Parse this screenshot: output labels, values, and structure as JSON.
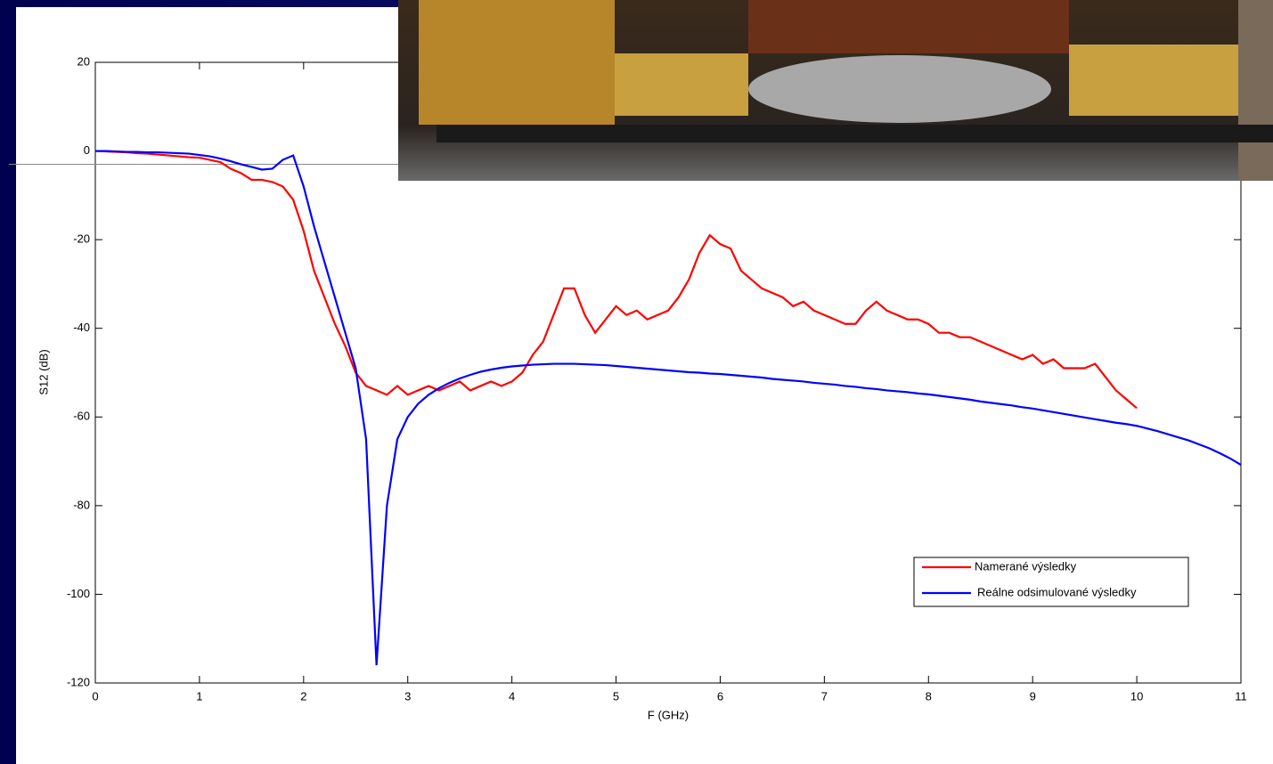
{
  "chart_data": {
    "type": "line",
    "xlabel": "F (GHz)",
    "ylabel": "S12 (dB)",
    "x": [
      0,
      0.1,
      0.2,
      0.3,
      0.4,
      0.5,
      0.6,
      0.7,
      0.8,
      0.9,
      1,
      1.1,
      1.2,
      1.3,
      1.4,
      1.5,
      1.6,
      1.7,
      1.8,
      1.9,
      2,
      2.1,
      2.2,
      2.3,
      2.4,
      2.5,
      2.6,
      2.7,
      2.8,
      2.9,
      3,
      3.1,
      3.2,
      3.3,
      3.4,
      3.5,
      3.6,
      3.7,
      3.8,
      3.9,
      4,
      4.1,
      4.2,
      4.3,
      4.4,
      4.5,
      4.6,
      4.7,
      4.8,
      4.9,
      5,
      5.1,
      5.2,
      5.3,
      5.4,
      5.5,
      5.6,
      5.7,
      5.8,
      5.9,
      6,
      6.1,
      6.2,
      6.3,
      6.4,
      6.5,
      6.6,
      6.7,
      6.8,
      6.9,
      7,
      7.1,
      7.2,
      7.3,
      7.4,
      7.5,
      7.6,
      7.7,
      7.8,
      7.9,
      8,
      8.1,
      8.2,
      8.3,
      8.4,
      8.5,
      8.6,
      8.7,
      8.8,
      8.9,
      9,
      9.1,
      9.2,
      9.3,
      9.4,
      9.5,
      9.6,
      9.7,
      9.8,
      9.9,
      10,
      10.1,
      10.2,
      10.3,
      10.4,
      10.5,
      10.6,
      10.7,
      10.8,
      10.9,
      11
    ],
    "series": [
      {
        "name": "Namerané výsledky",
        "color": "#ff0000",
        "values": [
          0,
          -0.1,
          -0.2,
          -0.3,
          -0.5,
          -0.6,
          -0.8,
          -1,
          -1.2,
          -1.4,
          -1.5,
          -2,
          -2.5,
          -4,
          -5,
          -6.5,
          -6.5,
          -7,
          -8,
          -11,
          -18,
          -27,
          -33,
          -39,
          -44,
          -50,
          -53,
          -54,
          -55,
          -53,
          -55,
          -54,
          -53,
          -54,
          -53,
          -52,
          -54,
          -53,
          -52,
          -53,
          -52,
          -50,
          -46,
          -43,
          -37,
          -31,
          -31,
          -37,
          -41,
          -38,
          -35,
          -37,
          -36,
          -38,
          -37,
          -36,
          -33,
          -29,
          -23,
          -19,
          -21,
          -22,
          -27,
          -29,
          -31,
          -32,
          -33,
          -35,
          -34,
          -36,
          -37,
          -38,
          -39,
          -39,
          -36,
          -34,
          -36,
          -37,
          -38,
          -38,
          -39,
          -41,
          -41,
          -42,
          -42,
          -43,
          -44,
          -45,
          -46,
          -47,
          -46,
          -48,
          -47,
          -49,
          -49,
          -49,
          -48,
          -51,
          -54,
          -56,
          -58,
          null,
          null,
          null,
          null,
          null,
          null,
          null,
          null,
          null,
          null
        ]
      },
      {
        "name": "Reálne odsimulované výsledky",
        "color": "#0000ff",
        "values": [
          0,
          0,
          -0.1,
          -0.2,
          -0.2,
          -0.3,
          -0.3,
          -0.4,
          -0.5,
          -0.6,
          -0.9,
          -1.2,
          -1.7,
          -2.3,
          -3,
          -3.6,
          -4.2,
          -4,
          -2,
          -1,
          -8,
          -17,
          -25,
          -33,
          -41,
          -49,
          -65,
          -116,
          -80,
          -65,
          -60,
          -57,
          -55,
          -53.5,
          -52.3,
          -51.3,
          -50.5,
          -49.8,
          -49.3,
          -48.9,
          -48.6,
          -48.4,
          -48.2,
          -48.1,
          -48,
          -48,
          -48,
          -48.1,
          -48.2,
          -48.3,
          -48.5,
          -48.7,
          -48.9,
          -49.1,
          -49.3,
          -49.5,
          -49.7,
          -49.9,
          -50,
          -50.2,
          -50.3,
          -50.5,
          -50.7,
          -50.9,
          -51.1,
          -51.4,
          -51.6,
          -51.8,
          -52,
          -52.3,
          -52.5,
          -52.7,
          -53,
          -53.2,
          -53.5,
          -53.7,
          -54,
          -54.2,
          -54.4,
          -54.7,
          -54.9,
          -55.2,
          -55.5,
          -55.8,
          -56.1,
          -56.5,
          -56.8,
          -57.1,
          -57.4,
          -57.8,
          -58.1,
          -58.5,
          -58.9,
          -59.3,
          -59.7,
          -60.1,
          -60.5,
          -60.9,
          -61.3,
          -61.6,
          -62,
          -62.6,
          -63.2,
          -63.9,
          -64.6,
          -65.3,
          -66.2,
          -67.1,
          -68.2,
          -69.4,
          -70.8
        ]
      }
    ],
    "reference_line": -3,
    "xlim": [
      0,
      11
    ],
    "xticks": [
      0,
      1,
      2,
      3,
      4,
      5,
      6,
      7,
      8,
      9,
      10,
      11
    ],
    "ylim": [
      -120,
      20
    ],
    "yticks": [
      -120,
      -100,
      -80,
      -60,
      -40,
      -20,
      0,
      20
    ],
    "grid": false,
    "legend": "lower right"
  }
}
